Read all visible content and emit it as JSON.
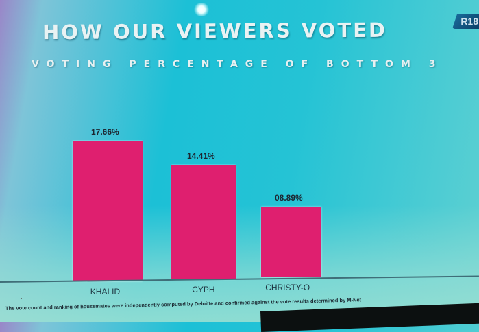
{
  "header": {
    "title": "HOW OUR VIEWERS VOTED",
    "subtitle": "VOTING PERCENTAGE OF BOTTOM 3",
    "rating_badge": "R18"
  },
  "footer": {
    "note": "The vote count and ranking of housemates were independently computed by Deloitte and confirmed against the vote results determined by M-Net"
  },
  "colors": {
    "bar": "#df1f6f",
    "background": "#1cc0d6",
    "title_text": "#e9f2f3"
  },
  "chart_data": {
    "type": "bar",
    "title": "HOW OUR VIEWERS VOTED",
    "subtitle": "VOTING PERCENTAGE OF BOTTOM 3",
    "categories": [
      "KHALID",
      "CYPH",
      "CHRISTY-O"
    ],
    "values": [
      17.66,
      14.41,
      8.89
    ],
    "value_labels": [
      "17.66%",
      "14.41%",
      "08.89%"
    ],
    "xlabel": "",
    "ylabel": "",
    "grid": false,
    "legend": null,
    "ylim": [
      0,
      20
    ]
  }
}
